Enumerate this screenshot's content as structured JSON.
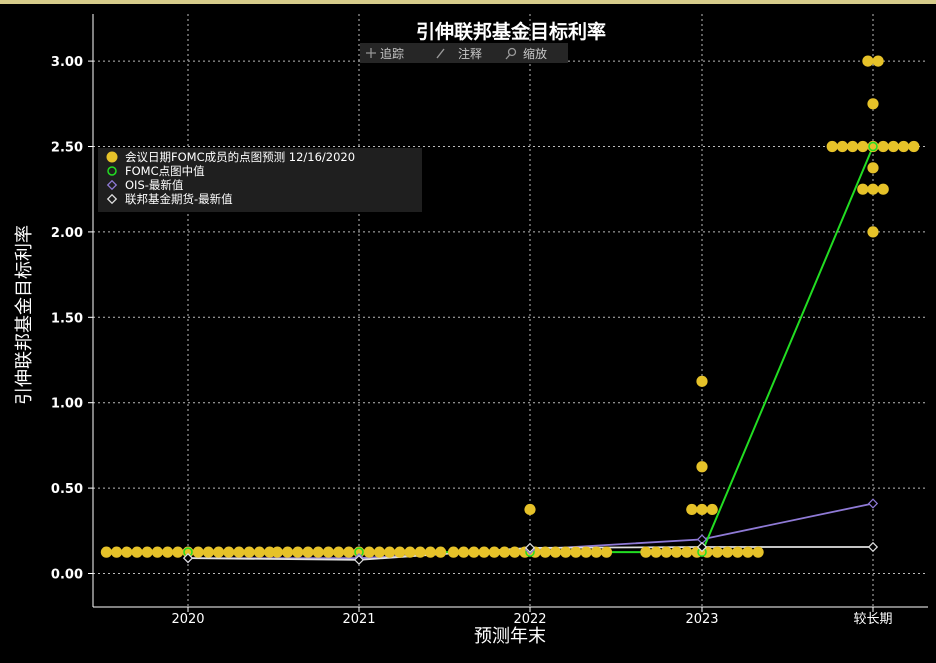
{
  "toolbar": {
    "items": [
      {
        "label": "追踪",
        "icon": "crosshair-icon"
      },
      {
        "label": "注释",
        "icon": "pencil-icon"
      },
      {
        "label": "缩放",
        "icon": "magnifier-icon"
      }
    ]
  },
  "colors": {
    "background": "#000000",
    "dots": "#e6c229",
    "median": "#22dd22",
    "ois": "#8f7ad6",
    "futures": "#e0e0e0",
    "grid": "#bbbbbb"
  },
  "chart_data": {
    "type": "scatter",
    "title": "引伸联邦基金目标利率",
    "xlabel": "预测年末",
    "ylabel": "引伸联邦基金目标利率",
    "categories": [
      "2020",
      "2021",
      "2022",
      "2023",
      "较长期"
    ],
    "ylim": [
      -0.2,
      3.3
    ],
    "yticks": [
      0.0,
      0.5,
      1.0,
      1.5,
      2.0,
      2.5,
      3.0
    ],
    "ytick_labels": [
      "0.00",
      "0.50",
      "1.00",
      "1.50",
      "2.00",
      "2.50",
      "3.00"
    ],
    "grid": true,
    "legend_position": "upper-left",
    "dots": {
      "name": "会议日期FOMC成员的点图预测 12/16/2020",
      "columns": [
        {
          "category": "2020",
          "groups": [
            {
              "value": 0.125,
              "count": 17
            }
          ]
        },
        {
          "category": "2021",
          "groups": [
            {
              "value": 0.125,
              "count": 17
            }
          ]
        },
        {
          "category": "2022",
          "groups": [
            {
              "value": 0.375,
              "count": 1
            },
            {
              "value": 0.125,
              "count": 16
            }
          ]
        },
        {
          "category": "2023",
          "groups": [
            {
              "value": 1.125,
              "count": 1
            },
            {
              "value": 0.625,
              "count": 1
            },
            {
              "value": 0.375,
              "count": 3
            },
            {
              "value": 0.125,
              "count": 12
            }
          ]
        },
        {
          "category": "较长期",
          "groups": [
            {
              "value": 3.0,
              "count": 2
            },
            {
              "value": 2.75,
              "count": 1
            },
            {
              "value": 2.5,
              "count": 9
            },
            {
              "value": 2.375,
              "count": 1
            },
            {
              "value": 2.25,
              "count": 3
            },
            {
              "value": 2.0,
              "count": 1
            }
          ]
        }
      ]
    },
    "series": [
      {
        "name": "FOMC点图中值",
        "values": [
          0.125,
          0.125,
          0.125,
          0.125,
          2.5
        ]
      },
      {
        "name": "OIS-最新值",
        "values": [
          0.09,
          0.09,
          0.14,
          0.2,
          0.41
        ]
      },
      {
        "name": "联邦基金期货-最新值",
        "values": [
          0.09,
          0.08,
          0.15,
          0.155,
          0.155
        ]
      }
    ]
  }
}
